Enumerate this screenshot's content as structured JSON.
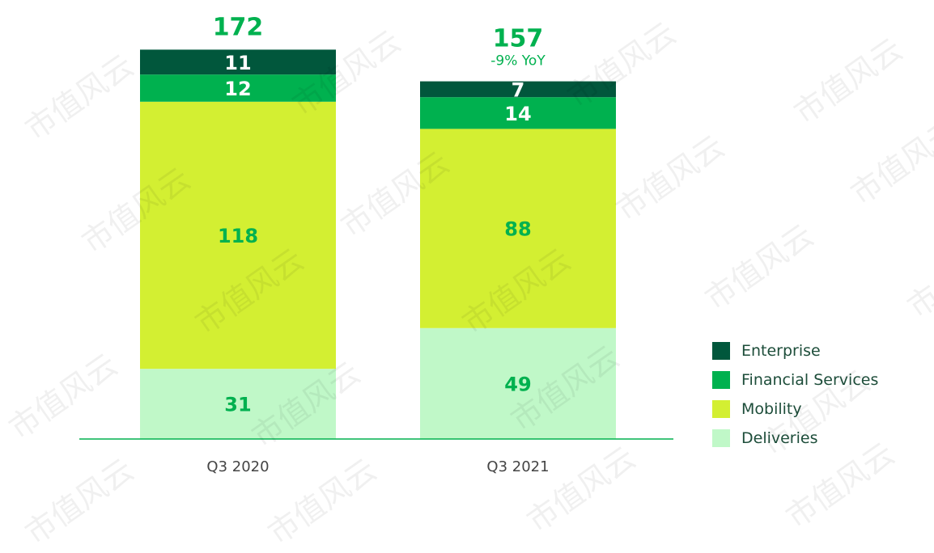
{
  "chart_data": {
    "type": "bar",
    "stacked": true,
    "categories": [
      "Q3 2020",
      "Q3 2021"
    ],
    "series": [
      {
        "name": "Deliveries",
        "values": [
          31,
          49
        ],
        "color": "#C0F8C8",
        "label_color": "#00B14F"
      },
      {
        "name": "Mobility",
        "values": [
          118,
          88
        ],
        "color": "#D3EF32",
        "label_color": "#00B14F"
      },
      {
        "name": "Financial Services",
        "values": [
          12,
          14
        ],
        "color": "#00B14F",
        "label_color": "#FFFFFF"
      },
      {
        "name": "Enterprise",
        "values": [
          11,
          7
        ],
        "color": "#01573C",
        "label_color": "#FFFFFF"
      }
    ],
    "totals": [
      "172",
      "157"
    ],
    "annotations": [
      "",
      "-9% YoY"
    ],
    "legend": {
      "position": "right",
      "order": [
        "Enterprise",
        "Financial Services",
        "Mobility",
        "Deliveries"
      ]
    },
    "grid": false,
    "ylim": [
      0,
      172
    ]
  },
  "watermark_text": "市值风云"
}
